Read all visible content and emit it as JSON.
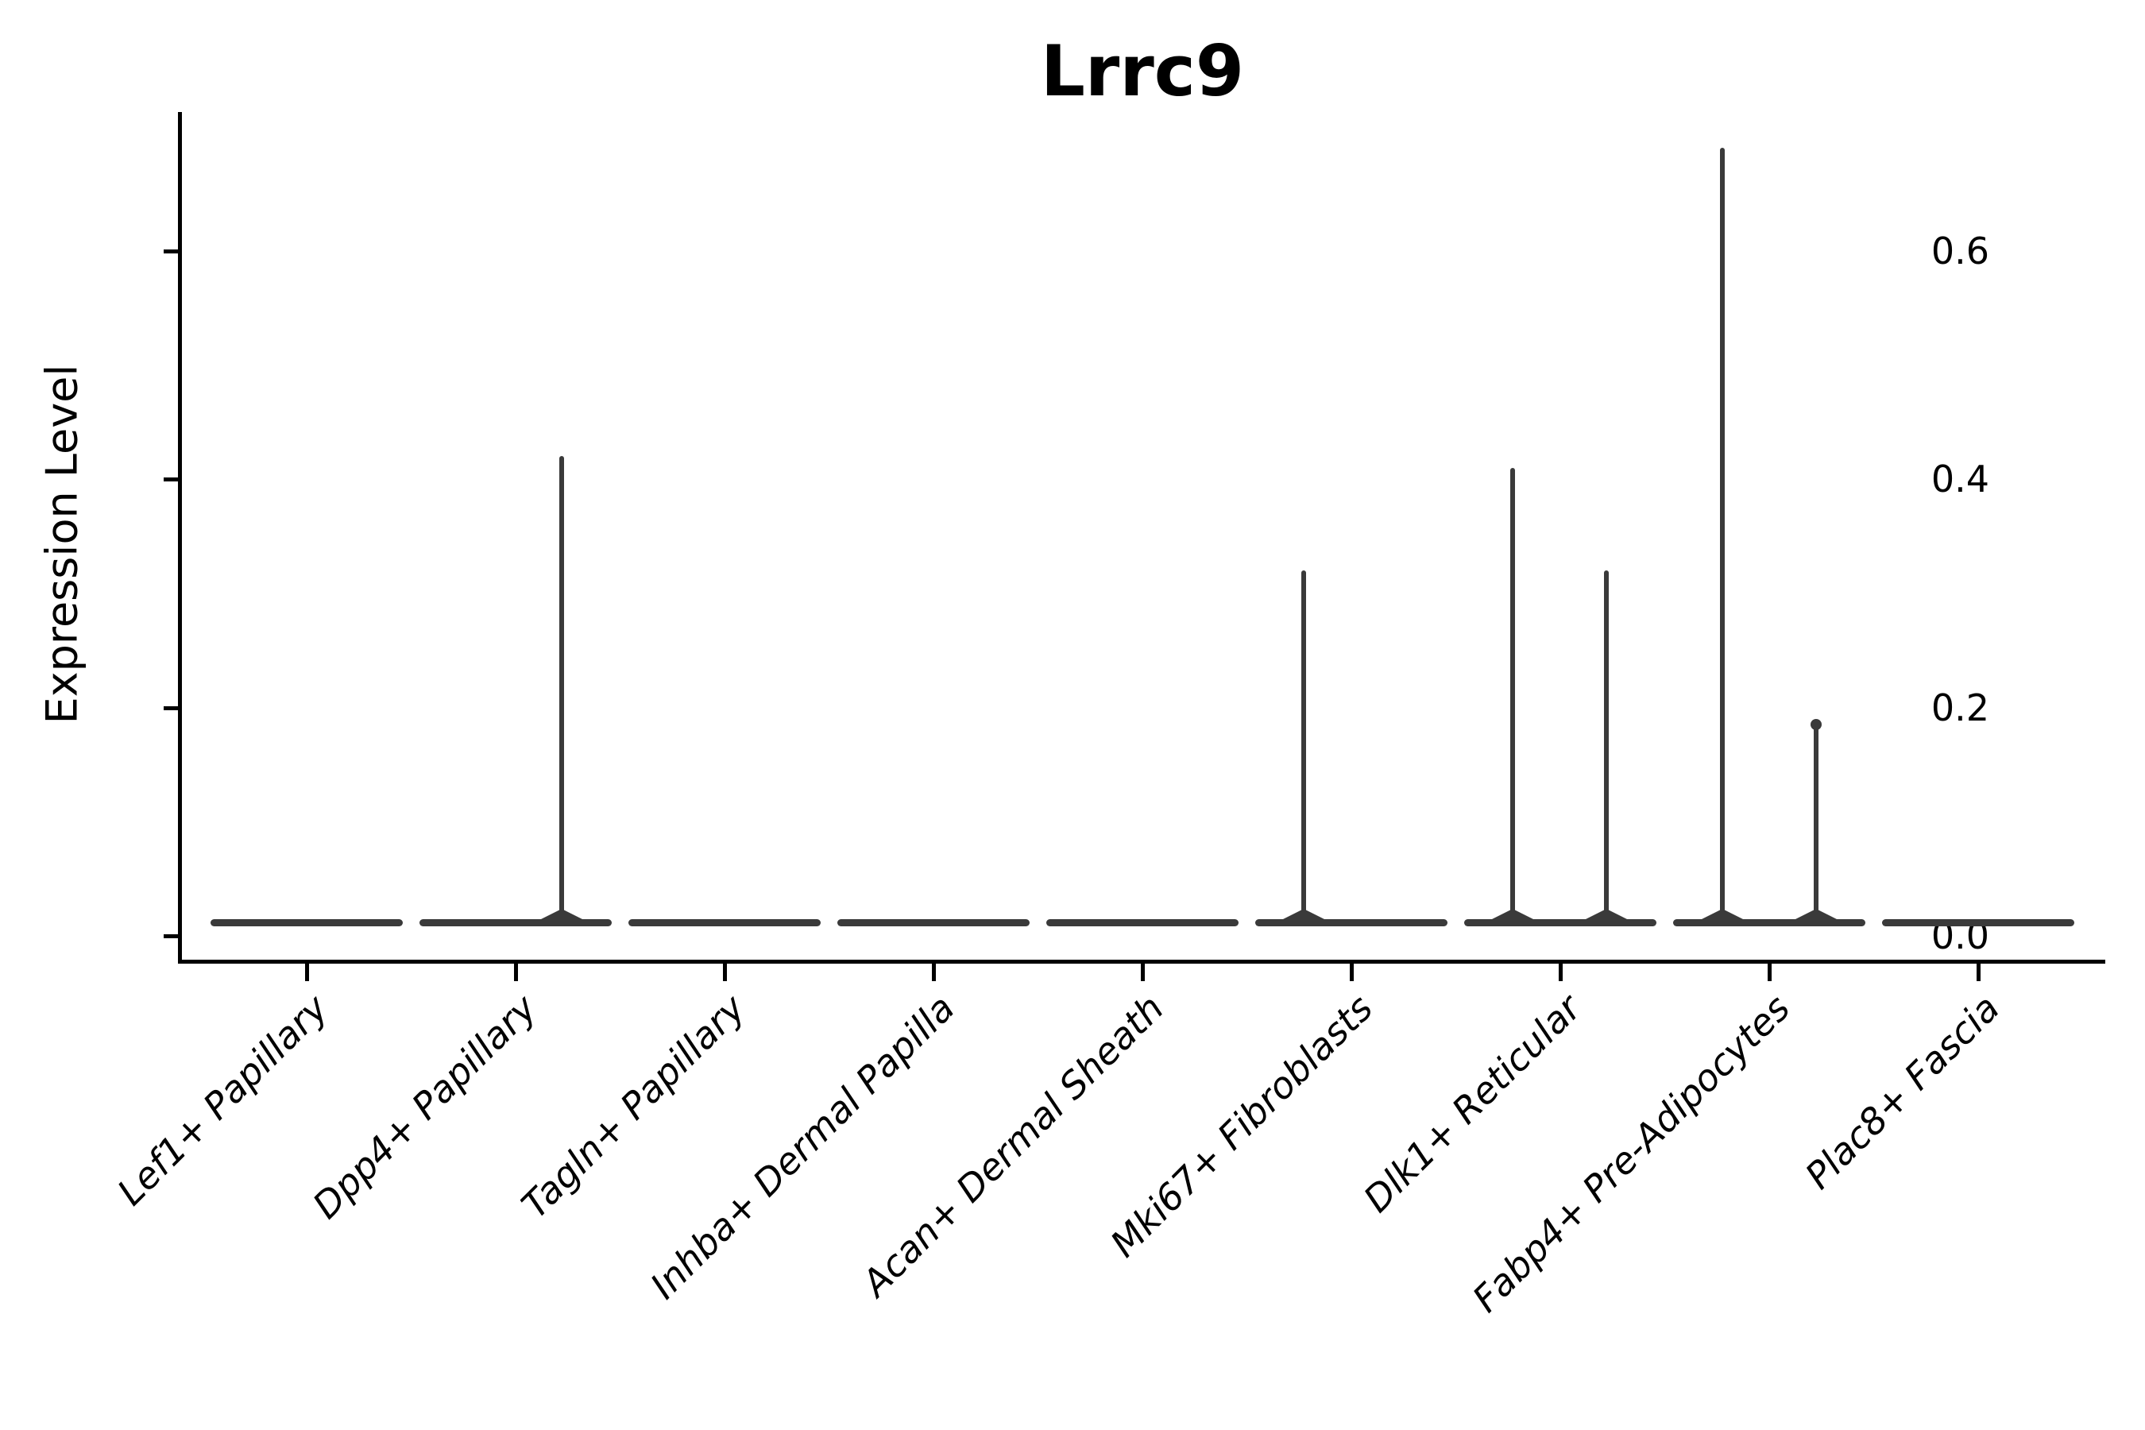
{
  "chart_data": {
    "type": "violin",
    "title": "Lrrc9",
    "ylabel": "Expression Level",
    "xlabel": "",
    "ylim": [
      0,
      0.72
    ],
    "yticks": [
      0.0,
      0.2,
      0.4,
      0.6
    ],
    "ytick_labels": [
      "0.0",
      "0.2",
      "0.4",
      "0.6"
    ],
    "grid": false,
    "legend": "none",
    "x_label_rotation_deg": 45,
    "x_label_style": "italic",
    "categories": [
      "Lef1+ Papillary",
      "Dpp4+ Papillary",
      "Tagln+ Papillary",
      "Inhba+ Dermal Papilla",
      "Acan+ Dermal Sheath",
      "Mki67+ Fibroblasts",
      "Dlk1+ Reticular",
      "Fabp4+ Pre-Adipocytes",
      "Plac8+ Fascia"
    ],
    "violins": [
      {
        "category": "Lef1+ Papillary",
        "baseline_value": 0.0,
        "spikes": []
      },
      {
        "category": "Dpp4+ Papillary",
        "baseline_value": 0.0,
        "spikes": [
          {
            "value": 0.42,
            "offset_frac": 0.22,
            "dot": false
          }
        ]
      },
      {
        "category": "Tagln+ Papillary",
        "baseline_value": 0.0,
        "spikes": []
      },
      {
        "category": "Inhba+ Dermal Papilla",
        "baseline_value": 0.0,
        "spikes": []
      },
      {
        "category": "Acan+ Dermal Sheath",
        "baseline_value": 0.0,
        "spikes": []
      },
      {
        "category": "Mki67+ Fibroblasts",
        "baseline_value": 0.0,
        "spikes": [
          {
            "value": 0.32,
            "offset_frac": -0.23,
            "dot": false
          }
        ]
      },
      {
        "category": "Dlk1+ Reticular",
        "baseline_value": 0.0,
        "spikes": [
          {
            "value": 0.41,
            "offset_frac": -0.23,
            "dot": false
          },
          {
            "value": 0.32,
            "offset_frac": 0.22,
            "dot": false
          }
        ]
      },
      {
        "category": "Fabp4+ Pre-Adipocytes",
        "baseline_value": 0.0,
        "spikes": [
          {
            "value": 0.69,
            "offset_frac": -0.225,
            "dot": false
          },
          {
            "value": 0.185,
            "offset_frac": 0.225,
            "dot": true
          }
        ]
      },
      {
        "category": "Plac8+ Fascia",
        "baseline_value": 0.0,
        "spikes": []
      }
    ],
    "colors": {
      "violin": "#3a3a3a",
      "axis": "#000000",
      "text": "#000000",
      "background": "#ffffff"
    }
  }
}
